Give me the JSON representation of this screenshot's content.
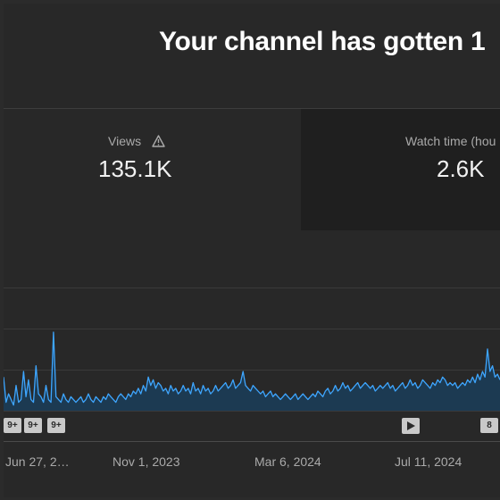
{
  "headline": "Your channel has gotten 1",
  "cards": {
    "views": {
      "label": "Views",
      "value": "135.1K"
    },
    "watch_time": {
      "label": "Watch time (hou",
      "value": "2.6K"
    }
  },
  "markers": [
    "9+",
    "9+",
    "9+",
    "8"
  ],
  "x_axis_labels": [
    "Jun 27, 2…",
    "Nov 1, 2023",
    "Mar 6, 2024",
    "Jul 11, 2024"
  ],
  "colors": {
    "line": "#3ea6ff",
    "fill": "#1c3a52",
    "background": "#282828"
  },
  "chart_data": {
    "type": "area",
    "x_ticks": [
      "Jun 27, 2…",
      "Nov 1, 2023",
      "Mar 6, 2024",
      "Jul 11, 2024"
    ],
    "values": [
      12,
      3,
      6,
      4,
      2,
      9,
      3,
      4,
      14,
      5,
      11,
      4,
      3,
      16,
      6,
      5,
      3,
      9,
      4,
      3,
      28,
      5,
      4,
      3,
      6,
      4,
      3,
      5,
      4,
      3,
      4,
      5,
      3,
      4,
      6,
      4,
      3,
      5,
      4,
      3,
      5,
      4,
      6,
      5,
      4,
      3,
      5,
      6,
      5,
      4,
      6,
      5,
      7,
      6,
      8,
      6,
      9,
      7,
      12,
      9,
      11,
      8,
      10,
      9,
      7,
      8,
      6,
      9,
      7,
      8,
      6,
      7,
      9,
      7,
      8,
      6,
      10,
      7,
      8,
      6,
      9,
      7,
      8,
      6,
      7,
      9,
      7,
      8,
      9,
      10,
      8,
      9,
      11,
      8,
      9,
      10,
      14,
      9,
      8,
      7,
      9,
      8,
      7,
      6,
      7,
      5,
      6,
      7,
      5,
      6,
      5,
      4,
      5,
      6,
      5,
      4,
      5,
      6,
      4,
      5,
      6,
      5,
      4,
      5,
      6,
      5,
      7,
      6,
      5,
      7,
      8,
      6,
      7,
      9,
      7,
      8,
      10,
      8,
      9,
      7,
      8,
      9,
      10,
      8,
      9,
      10,
      9,
      8,
      9,
      7,
      8,
      9,
      8,
      9,
      10,
      8,
      9,
      7,
      8,
      9,
      10,
      8,
      9,
      11,
      9,
      10,
      8,
      9,
      11,
      10,
      9,
      8,
      10,
      9,
      11,
      10,
      12,
      11,
      9,
      10,
      9,
      10,
      8,
      9,
      10,
      9,
      11,
      10,
      12,
      10,
      13,
      11,
      14,
      12,
      22,
      14,
      16,
      12,
      13,
      11
    ]
  }
}
